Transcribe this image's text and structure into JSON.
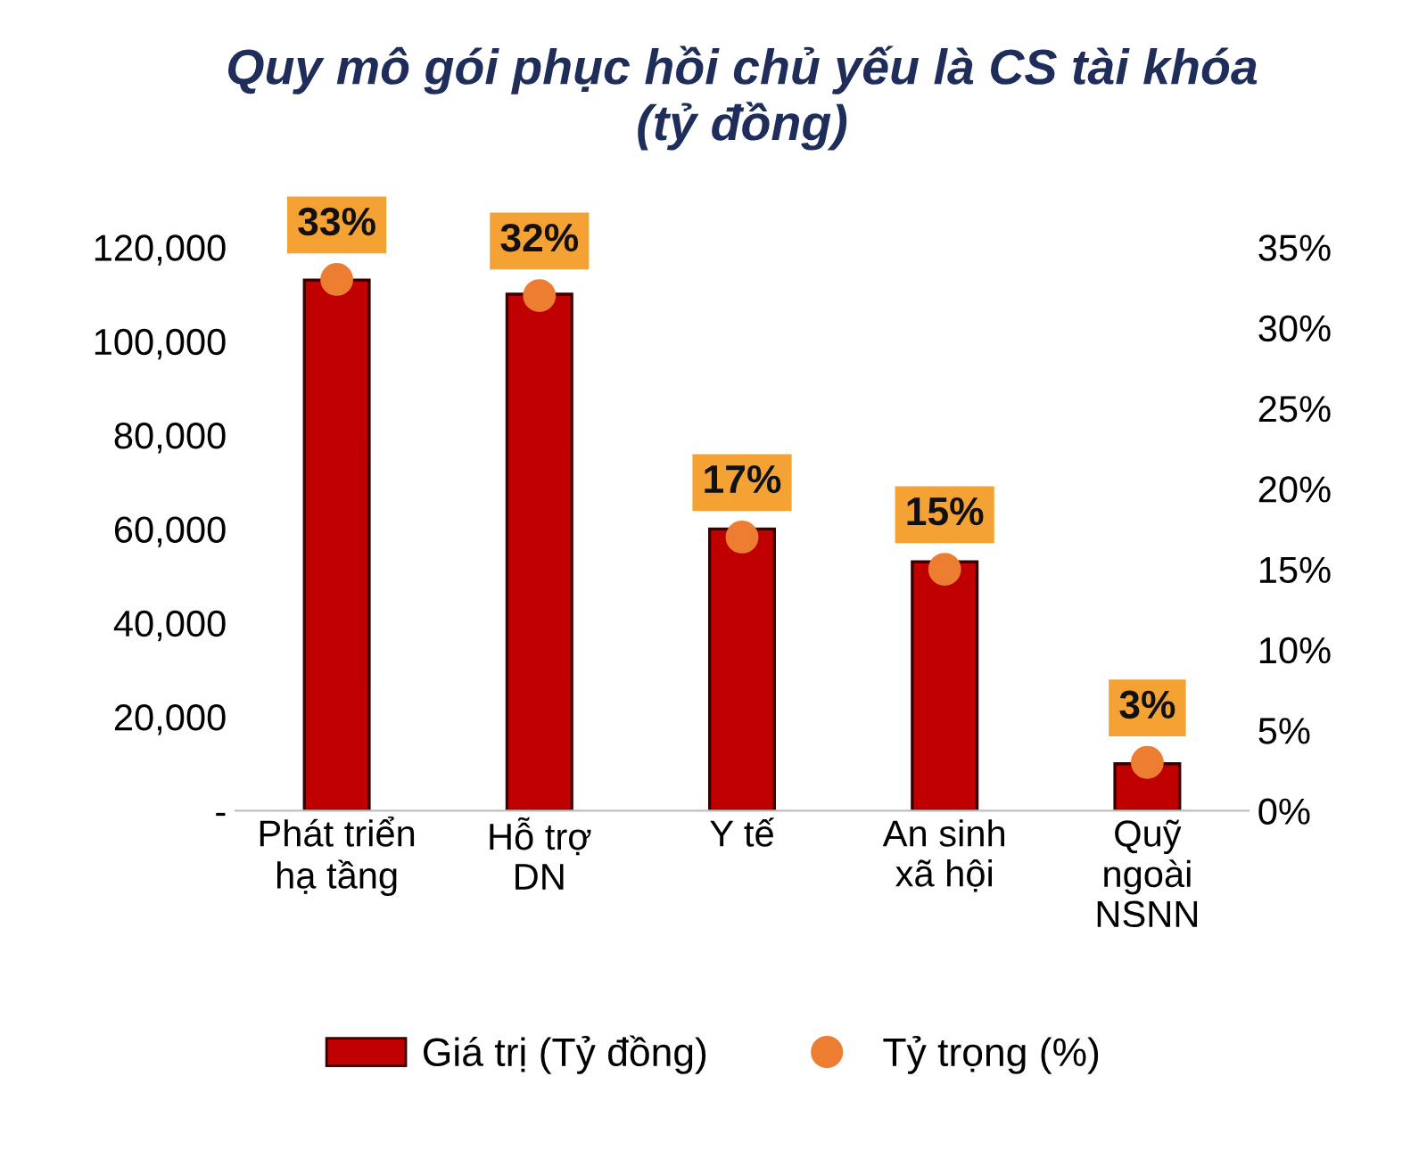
{
  "chart_data": {
    "type": "bar",
    "title": "Quy mô gói phục hồi chủ yếu là CS tài khóa\n(tỷ đồng)",
    "categories": [
      "Phát triển\nhạ tầng",
      "Hỗ trợ\nDN",
      "Y tế",
      "An sinh\nxã hội",
      "Quỹ\nngoài\nNSNN"
    ],
    "series": [
      {
        "name": "Giá trị (Tỷ đồng)",
        "color": "#c00000",
        "values": [
          113000,
          110000,
          60000,
          53000,
          10000
        ]
      },
      {
        "name": "Tỷ trọng (%)",
        "type": "scatter",
        "axis": "y2",
        "color": "#ed7d31",
        "values": [
          33,
          32,
          17,
          15,
          3
        ],
        "value_labels": [
          "33%",
          "32%",
          "17%",
          "15%",
          "3%"
        ]
      }
    ],
    "ylim": [
      0,
      120000
    ],
    "yticks": [
      {
        "value": 0,
        "label": "-"
      },
      {
        "value": 20000,
        "label": "20,000"
      },
      {
        "value": 40000,
        "label": "40,000"
      },
      {
        "value": 60000,
        "label": "60,000"
      },
      {
        "value": 80000,
        "label": "80,000"
      },
      {
        "value": 100000,
        "label": "100,000"
      },
      {
        "value": 120000,
        "label": "120,000"
      }
    ],
    "y2lim": [
      0,
      35
    ],
    "y2ticks": [
      {
        "value": 0,
        "label": "0%"
      },
      {
        "value": 5,
        "label": "5%"
      },
      {
        "value": 10,
        "label": "10%"
      },
      {
        "value": 15,
        "label": "15%"
      },
      {
        "value": 20,
        "label": "20%"
      },
      {
        "value": 25,
        "label": "25%"
      },
      {
        "value": 30,
        "label": "30%"
      },
      {
        "value": 35,
        "label": "35%"
      }
    ],
    "marker": "circle",
    "grid": false,
    "legend": "bottom"
  }
}
